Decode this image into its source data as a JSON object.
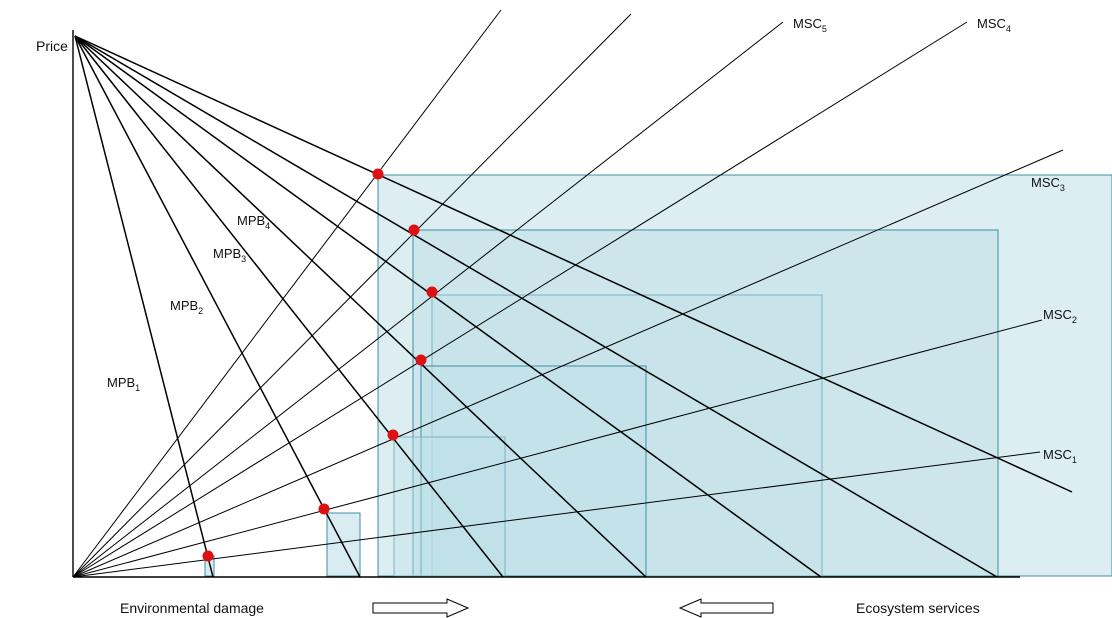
{
  "axis": {
    "y_label": "Price",
    "x_left_label": "Environmental damage",
    "x_right_label": "Ecosystem services"
  },
  "mpb_curves": [
    {
      "base": "MPB",
      "sub": "1"
    },
    {
      "base": "MPB",
      "sub": "2"
    },
    {
      "base": "MPB",
      "sub": "3"
    },
    {
      "base": "MPB",
      "sub": "4"
    }
  ],
  "msc_curves": [
    {
      "base": "MSC",
      "sub": "1"
    },
    {
      "base": "MSC",
      "sub": "2"
    },
    {
      "base": "MSC",
      "sub": "3"
    },
    {
      "base": "MSC",
      "sub": "4"
    },
    {
      "base": "MSC",
      "sub": "5"
    }
  ],
  "colors": {
    "box_fill": "#bfe0e8",
    "box_stroke": "#3f8fa3",
    "equilibrium_point": "#dd1111",
    "line": "#000000",
    "arrow": "#ffffff"
  },
  "icons": {
    "right_arrow": "right-arrow-icon",
    "left_arrow": "left-arrow-icon"
  }
}
